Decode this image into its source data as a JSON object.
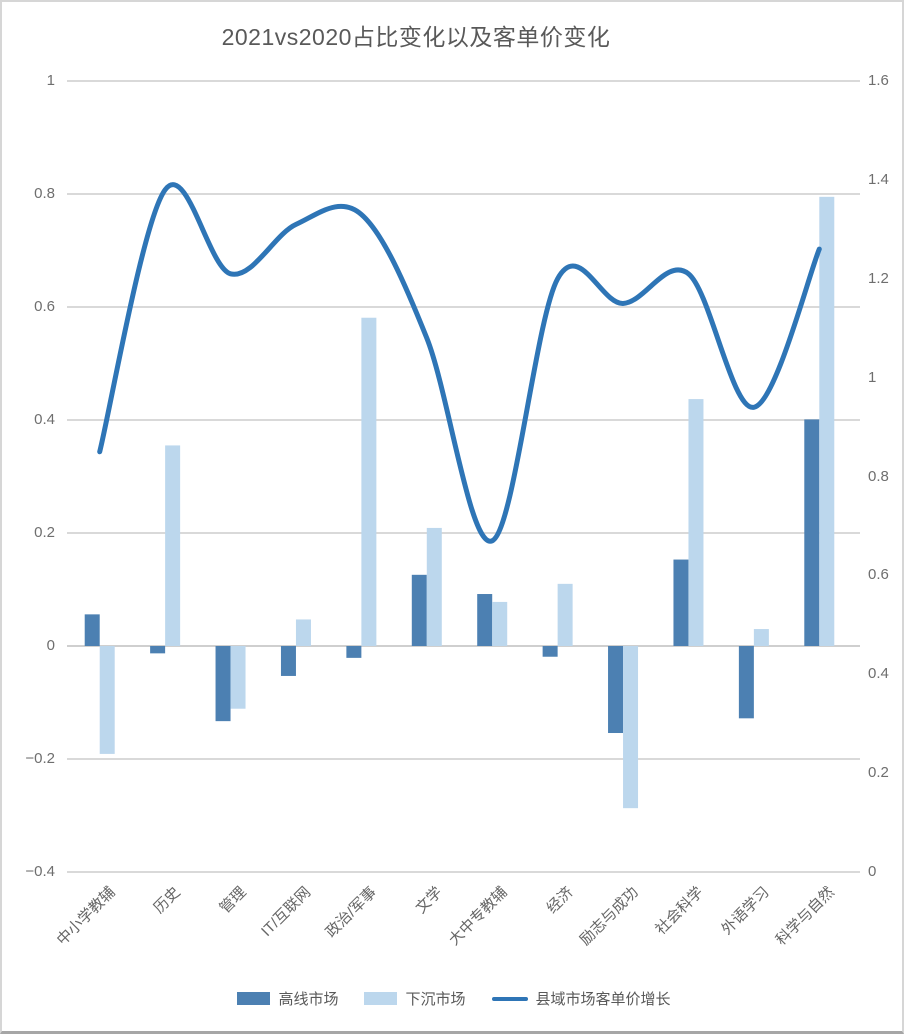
{
  "chart": {
    "title": "2021vs2020占比变化以及客单价变化"
  },
  "colors": {
    "background": "#ffffff",
    "grid": "#d9d9d9",
    "zero_line": "#cfcfcf",
    "title_text": "#595959",
    "axis_text": "#6e6e6e",
    "bar_dark": "#4c80b2",
    "bar_light": "#bcd7ed",
    "line_blue": "#2e75b6"
  },
  "chart_data": {
    "type": "bar",
    "subtype": "combo-bar-line",
    "title": "2021vs2020占比变化以及客单价变化",
    "xlabel": "",
    "ylabel_left": "",
    "ylabel_right": "",
    "grid": true,
    "legend_position": "bottom",
    "categories": [
      "中小学教辅",
      "历史",
      "管理",
      "IT/互联网",
      "政治/军事",
      "文学",
      "大中专教辅",
      "经济",
      "励志与成功",
      "社会科学",
      "外语学习",
      "科学与自然"
    ],
    "series": [
      {
        "id": "high-line-market",
        "name": "高线市场",
        "type": "bar",
        "axis": "left",
        "color": "#4c80b2",
        "values": [
          0.056,
          -0.013,
          -0.133,
          -0.053,
          -0.021,
          0.126,
          0.092,
          -0.019,
          -0.154,
          0.153,
          -0.128,
          0.401
        ]
      },
      {
        "id": "sinking-market",
        "name": "下沉市场",
        "type": "bar",
        "axis": "left",
        "color": "#bcd7ed",
        "values": [
          -0.191,
          0.355,
          -0.111,
          0.047,
          0.581,
          0.209,
          0.078,
          0.11,
          -0.287,
          0.437,
          0.03,
          0.795
        ]
      },
      {
        "id": "county-market-price-growth",
        "name": "县域市场客单价增长",
        "type": "line",
        "axis": "right",
        "color": "#2e75b6",
        "values": [
          0.85,
          1.38,
          1.21,
          1.31,
          1.33,
          1.08,
          0.67,
          1.2,
          1.15,
          1.21,
          0.94,
          1.26
        ]
      }
    ],
    "left_axis": {
      "min": -0.4,
      "max": 1.0,
      "ticks": [
        {
          "v": 1.0,
          "label": "1"
        },
        {
          "v": 0.8,
          "label": "0.8"
        },
        {
          "v": 0.6,
          "label": "0.6"
        },
        {
          "v": 0.4,
          "label": "0.4"
        },
        {
          "v": 0.2,
          "label": "0.2"
        },
        {
          "v": 0.0,
          "label": "0"
        },
        {
          "v": -0.2,
          "label": "−0.2"
        },
        {
          "v": -0.4,
          "label": "−0.4"
        }
      ]
    },
    "right_axis": {
      "min": 0,
      "max": 1.6,
      "ticks": [
        {
          "v": 1.6,
          "label": "1.6"
        },
        {
          "v": 1.4,
          "label": "1.4"
        },
        {
          "v": 1.2,
          "label": "1.2"
        },
        {
          "v": 1.0,
          "label": "1"
        },
        {
          "v": 0.8,
          "label": "0.8"
        },
        {
          "v": 0.6,
          "label": "0.6"
        },
        {
          "v": 0.4,
          "label": "0.4"
        },
        {
          "v": 0.2,
          "label": "0.2"
        },
        {
          "v": 0.0,
          "label": "0"
        }
      ]
    }
  }
}
